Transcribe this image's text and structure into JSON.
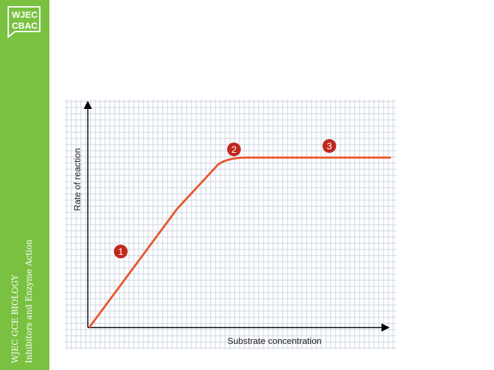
{
  "logo": {
    "line1": "WJEC",
    "line2": "CBAC"
  },
  "sidebar": {
    "course": "WJEC GCE BIOLOGY",
    "topic": "Inhibitors and Enzyme Action"
  },
  "graph": {
    "y_axis_label": "Rate of reaction",
    "x_axis_label": "Substrate concentration",
    "markers": [
      "1",
      "2",
      "3"
    ]
  }
}
